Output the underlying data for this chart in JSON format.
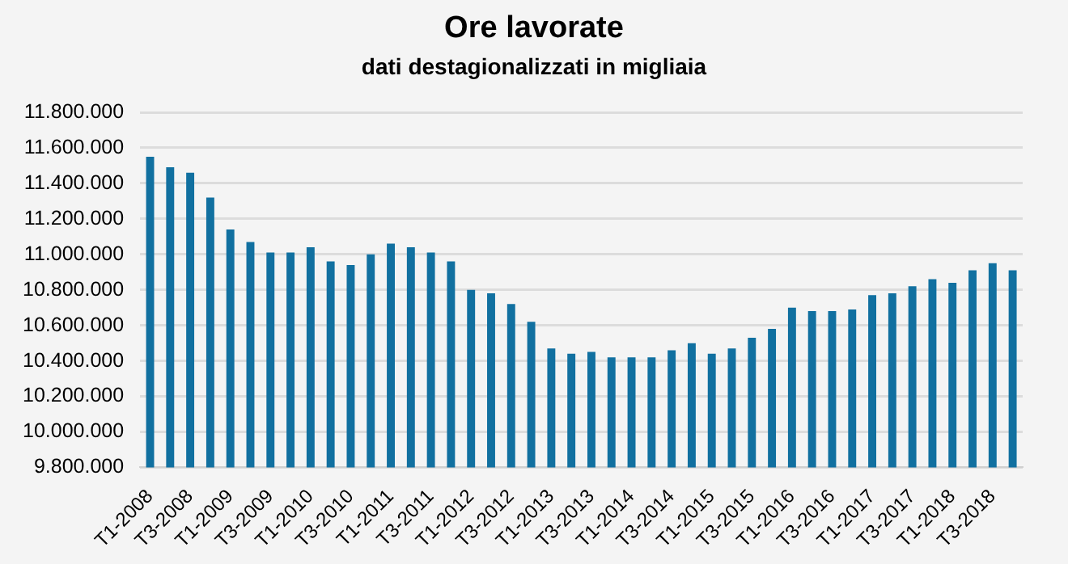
{
  "chart_data": {
    "type": "bar",
    "title": "Ore lavorate",
    "subtitle": "dati destagionalizzati in migliaia",
    "categories": [
      "T1-2008",
      null,
      "T3-2008",
      null,
      "T1-2009",
      null,
      "T3-2009",
      null,
      "T1-2010",
      null,
      "T3-2010",
      null,
      "T1-2011",
      null,
      "T3-2011",
      null,
      "T1-2012",
      null,
      "T3-2012",
      null,
      "T1-2013",
      null,
      "T3-2013",
      null,
      "T1-2014",
      null,
      "T3-2014",
      null,
      "T1-2015",
      null,
      "T3-2015",
      null,
      "T1-2016",
      null,
      "T3-2016",
      null,
      "T1-2017",
      null,
      "T3-2017",
      null,
      "T1-2018",
      null,
      "T3-2018",
      null
    ],
    "values": [
      11550000,
      11490000,
      11460000,
      11320000,
      11140000,
      11070000,
      11010000,
      11010000,
      11040000,
      10960000,
      10940000,
      11000000,
      11060000,
      11040000,
      11010000,
      10960000,
      10800000,
      10780000,
      10720000,
      10620000,
      10470000,
      10440000,
      10450000,
      10420000,
      10420000,
      10420000,
      10460000,
      10500000,
      10440000,
      10470000,
      10530000,
      10580000,
      10700000,
      10680000,
      10680000,
      10690000,
      10770000,
      10780000,
      10820000,
      10860000,
      10840000,
      10910000,
      10950000,
      10910000
    ],
    "color": "#1170a0",
    "ylim": [
      9800000,
      11800000
    ],
    "yticks": [
      {
        "value": 9800000,
        "label": "9.800.000"
      },
      {
        "value": 10000000,
        "label": "10.000.000"
      },
      {
        "value": 10200000,
        "label": "10.200.000"
      },
      {
        "value": 10400000,
        "label": "10.400.000"
      },
      {
        "value": 10600000,
        "label": "10.600.000"
      },
      {
        "value": 10800000,
        "label": "10.800.000"
      },
      {
        "value": 11000000,
        "label": "11.000.000"
      },
      {
        "value": 11200000,
        "label": "11.200.000"
      },
      {
        "value": 11400000,
        "label": "11.400.000"
      },
      {
        "value": 11600000,
        "label": "11.600.000"
      },
      {
        "value": 11800000,
        "label": "11.800.000"
      }
    ],
    "grid": "y",
    "legend": false
  }
}
